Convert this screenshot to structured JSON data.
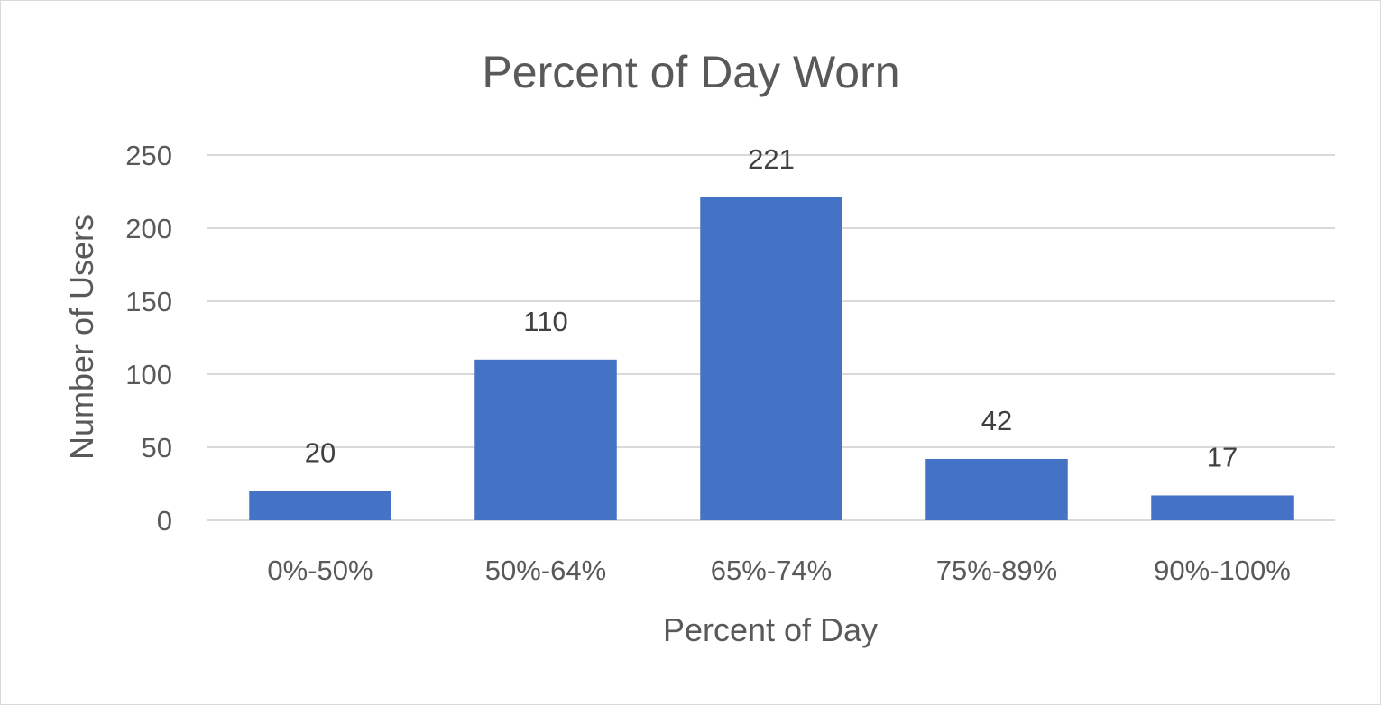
{
  "chart_data": {
    "type": "bar",
    "title": "Percent of Day Worn",
    "xlabel": "Percent of Day",
    "ylabel": "Number of Users",
    "categories": [
      "0%-50%",
      "50%-64%",
      "65%-74%",
      "75%-89%",
      "90%-100%"
    ],
    "values": [
      20,
      110,
      221,
      42,
      17
    ],
    "ylim": [
      0,
      250
    ],
    "yticks": [
      0,
      50,
      100,
      150,
      200,
      250
    ],
    "grid": true,
    "legend": "none",
    "data_labels": true,
    "bar_color": "#4472C4"
  }
}
